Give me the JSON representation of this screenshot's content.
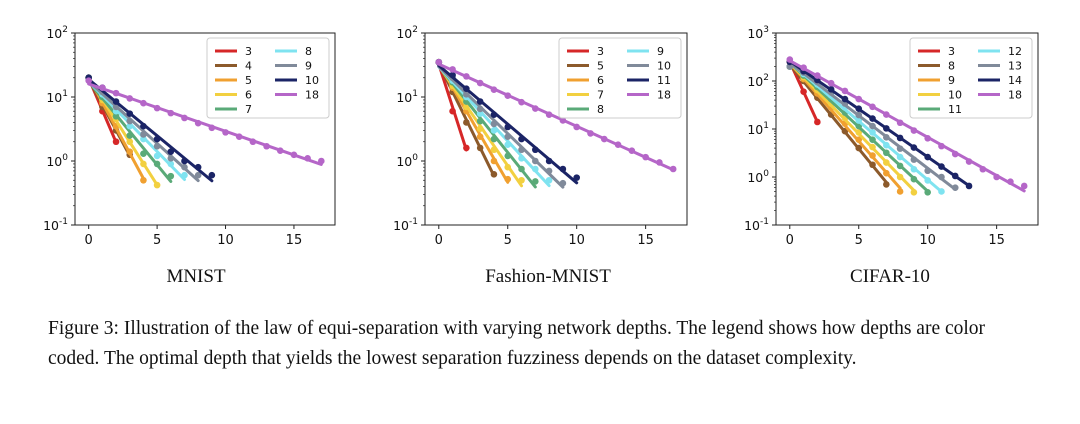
{
  "figure": {
    "caption": "Figure 3: Illustration of the law of equi-separation with varying network depths. The legend shows how depths are color coded. The optimal depth that yields the lowest separation fuzziness depends on the dataset complexity.",
    "colors": {
      "3": "#d62728",
      "4": "#8c5a2b",
      "5": "#f0a030",
      "6": "#f2d040",
      "7": "#5aaa78",
      "8": "#7fe3f0",
      "9": "#808a9a",
      "10": "#1b2466",
      "11": "#1b2466",
      "12": "#7fe3f0",
      "13": "#808a9a",
      "14": "#1b2466",
      "18": "#b566c8"
    }
  },
  "chart_data": [
    {
      "type": "line",
      "title": "MNIST",
      "xlabel": "",
      "ylabel": "",
      "yscale": "log",
      "xlim": [
        -1,
        18
      ],
      "ylim": [
        0.1,
        100
      ],
      "xticks": [
        "0",
        "5",
        "10",
        "15"
      ],
      "yticks": [
        "10^-1",
        "10^0",
        "10^1",
        "10^2"
      ],
      "legend_placement": "top-right",
      "legend_columns": [
        [
          "3",
          "4",
          "5",
          "6",
          "7"
        ],
        [
          "8",
          "9",
          "10",
          "18"
        ]
      ],
      "series": [
        {
          "name": "3",
          "color": "#d62728",
          "x": [
            0,
            1,
            2
          ],
          "y": [
            20,
            6.0,
            2.0
          ]
        },
        {
          "name": "4",
          "color": "#8c5a2b",
          "x": [
            0,
            1,
            2,
            3
          ],
          "y": [
            20,
            7.0,
            3.0,
            1.25
          ]
        },
        {
          "name": "5",
          "color": "#f0a030",
          "x": [
            0,
            1,
            2,
            3,
            4
          ],
          "y": [
            20,
            8.0,
            3.5,
            1.4,
            0.5
          ]
        },
        {
          "name": "6",
          "color": "#f2d040",
          "x": [
            0,
            1,
            2,
            3,
            4,
            5
          ],
          "y": [
            20,
            9.0,
            4.5,
            2.0,
            0.9,
            0.42
          ]
        },
        {
          "name": "7",
          "color": "#5aaa78",
          "x": [
            0,
            1,
            2,
            3,
            4,
            5,
            6
          ],
          "y": [
            20,
            10.0,
            5.0,
            2.5,
            1.3,
            0.9,
            0.58
          ]
        },
        {
          "name": "8",
          "color": "#7fe3f0",
          "x": [
            0,
            1,
            2,
            3,
            4,
            5,
            6,
            7
          ],
          "y": [
            20,
            11.0,
            6.0,
            3.5,
            2.2,
            1.2,
            0.9,
            0.6
          ]
        },
        {
          "name": "9",
          "color": "#808a9a",
          "x": [
            0,
            1,
            2,
            3,
            4,
            5,
            6,
            7,
            8
          ],
          "y": [
            20,
            12.0,
            7.0,
            4.2,
            2.6,
            1.7,
            1.1,
            0.8,
            0.6
          ]
        },
        {
          "name": "10",
          "color": "#1b2466",
          "x": [
            0,
            1,
            2,
            3,
            4,
            5,
            6,
            7,
            8,
            9
          ],
          "y": [
            20,
            14.0,
            8.5,
            5.5,
            3.5,
            2.2,
            1.4,
            1.0,
            0.8,
            0.6
          ]
        },
        {
          "name": "18",
          "color": "#b566c8",
          "x": [
            0,
            1,
            2,
            3,
            4,
            5,
            6,
            7,
            8,
            9,
            10,
            11,
            12,
            13,
            14,
            15,
            16,
            17
          ],
          "y": [
            18,
            14.0,
            11.5,
            9.5,
            8.0,
            6.7,
            5.6,
            4.7,
            3.9,
            3.3,
            2.8,
            2.4,
            2.0,
            1.7,
            1.45,
            1.25,
            1.1,
            1.0
          ]
        }
      ]
    },
    {
      "type": "line",
      "title": "Fashion-MNIST",
      "xlabel": "",
      "ylabel": "",
      "yscale": "log",
      "xlim": [
        -1,
        18
      ],
      "ylim": [
        0.1,
        100
      ],
      "xticks": [
        "0",
        "5",
        "10",
        "15"
      ],
      "yticks": [
        "10^-1",
        "10^0",
        "10^1",
        "10^2"
      ],
      "legend_placement": "top-right",
      "legend_columns": [
        [
          "3",
          "5",
          "6",
          "7",
          "8"
        ],
        [
          "9",
          "10",
          "11",
          "18"
        ]
      ],
      "series": [
        {
          "name": "3",
          "color": "#d62728",
          "x": [
            0,
            1,
            2
          ],
          "y": [
            35,
            6.0,
            1.6
          ]
        },
        {
          "name": "5",
          "color": "#8c5a2b",
          "x": [
            0,
            1,
            2,
            3,
            4
          ],
          "y": [
            35,
            12.0,
            4.0,
            1.6,
            0.62
          ]
        },
        {
          "name": "6",
          "color": "#f0a030",
          "x": [
            0,
            1,
            2,
            3,
            4,
            5
          ],
          "y": [
            35,
            14.0,
            6.0,
            2.4,
            1.0,
            0.52
          ]
        },
        {
          "name": "7",
          "color": "#f2d040",
          "x": [
            0,
            1,
            2,
            3,
            4,
            5,
            6
          ],
          "y": [
            35,
            15.0,
            7.0,
            3.2,
            1.5,
            0.8,
            0.5
          ]
        },
        {
          "name": "8",
          "color": "#5aaa78",
          "x": [
            0,
            1,
            2,
            3,
            4,
            5,
            6,
            7
          ],
          "y": [
            35,
            17.0,
            8.5,
            4.2,
            2.2,
            1.2,
            0.75,
            0.48
          ]
        },
        {
          "name": "9",
          "color": "#7fe3f0",
          "x": [
            0,
            1,
            2,
            3,
            4,
            5,
            6,
            7,
            8
          ],
          "y": [
            35,
            18.0,
            10.0,
            5.5,
            3.0,
            1.8,
            1.1,
            0.75,
            0.5
          ]
        },
        {
          "name": "10",
          "color": "#808a9a",
          "x": [
            0,
            1,
            2,
            3,
            4,
            5,
            6,
            7,
            8,
            9
          ],
          "y": [
            35,
            20.0,
            11.0,
            6.5,
            3.8,
            2.4,
            1.5,
            1.0,
            0.7,
            0.45
          ]
        },
        {
          "name": "11",
          "color": "#1b2466",
          "x": [
            0,
            1,
            2,
            3,
            4,
            5,
            6,
            7,
            8,
            9,
            10
          ],
          "y": [
            35,
            22.0,
            13.5,
            8.5,
            5.3,
            3.4,
            2.2,
            1.5,
            1.0,
            0.75,
            0.55
          ]
        },
        {
          "name": "18",
          "color": "#b566c8",
          "x": [
            0,
            1,
            2,
            3,
            4,
            5,
            6,
            7,
            8,
            9,
            10,
            11,
            12,
            13,
            14,
            15,
            16,
            17
          ],
          "y": [
            35,
            27,
            21,
            16.5,
            13,
            10.5,
            8.3,
            6.6,
            5.3,
            4.3,
            3.4,
            2.7,
            2.2,
            1.8,
            1.45,
            1.15,
            0.95,
            0.75
          ]
        }
      ]
    },
    {
      "type": "line",
      "title": "CIFAR-10",
      "xlabel": "",
      "ylabel": "",
      "yscale": "log",
      "xlim": [
        -1,
        18
      ],
      "ylim": [
        0.1,
        1000
      ],
      "xticks": [
        "0",
        "5",
        "10",
        "15"
      ],
      "yticks": [
        "10^-1",
        "10^0",
        "10^1",
        "10^2",
        "10^3"
      ],
      "legend_placement": "top-right",
      "legend_columns": [
        [
          "3",
          "8",
          "9",
          "10",
          "11"
        ],
        [
          "12",
          "13",
          "14",
          "18"
        ]
      ],
      "series": [
        {
          "name": "3",
          "color": "#d62728",
          "x": [
            0,
            1,
            2
          ],
          "y": [
            250,
            60,
            14
          ]
        },
        {
          "name": "8",
          "color": "#8c5a2b",
          "x": [
            0,
            1,
            2,
            3,
            4,
            5,
            6,
            7
          ],
          "y": [
            200,
            100,
            45,
            20,
            9,
            4,
            1.8,
            0.7
          ]
        },
        {
          "name": "9",
          "color": "#f0a030",
          "x": [
            0,
            1,
            2,
            3,
            4,
            5,
            6,
            7,
            8
          ],
          "y": [
            200,
            110,
            55,
            28,
            13,
            6,
            2.8,
            1.2,
            0.5
          ]
        },
        {
          "name": "10",
          "color": "#f2d040",
          "x": [
            0,
            1,
            2,
            3,
            4,
            5,
            6,
            7,
            8,
            9
          ],
          "y": [
            200,
            120,
            65,
            34,
            17,
            8.5,
            4.2,
            2.0,
            1.0,
            0.48
          ]
        },
        {
          "name": "11",
          "color": "#5aaa78",
          "x": [
            0,
            1,
            2,
            3,
            4,
            5,
            6,
            7,
            8,
            9,
            10
          ],
          "y": [
            200,
            130,
            75,
            42,
            22,
            11.5,
            6.0,
            3.2,
            1.7,
            0.9,
            0.48
          ]
        },
        {
          "name": "12",
          "color": "#7fe3f0",
          "x": [
            0,
            1,
            2,
            3,
            4,
            5,
            6,
            7,
            8,
            9,
            10,
            11
          ],
          "y": [
            200,
            140,
            85,
            50,
            28,
            15,
            8.5,
            4.6,
            2.6,
            1.45,
            0.85,
            0.5
          ]
        },
        {
          "name": "13",
          "color": "#808a9a",
          "x": [
            0,
            1,
            2,
            3,
            4,
            5,
            6,
            7,
            8,
            9,
            10,
            11,
            12
          ],
          "y": [
            200,
            150,
            95,
            58,
            34,
            19.5,
            11.5,
            6.7,
            3.9,
            2.3,
            1.35,
            1.0,
            0.6
          ]
        },
        {
          "name": "14",
          "color": "#1b2466",
          "x": [
            0,
            1,
            2,
            3,
            4,
            5,
            6,
            7,
            8,
            9,
            10,
            11,
            12,
            13
          ],
          "y": [
            250,
            160,
            105,
            67,
            42,
            26.5,
            16.5,
            10.3,
            6.5,
            4.1,
            2.6,
            1.65,
            1.05,
            0.65
          ]
        },
        {
          "name": "18",
          "color": "#b566c8",
          "x": [
            0,
            1,
            2,
            3,
            4,
            5,
            6,
            7,
            8,
            9,
            10,
            11,
            12,
            13,
            14,
            15,
            16,
            17
          ],
          "y": [
            280,
            190,
            130,
            90,
            62,
            42,
            29,
            20,
            13.5,
            9.3,
            6.4,
            4.4,
            3.0,
            2.1,
            1.45,
            1.0,
            0.8,
            0.65
          ]
        }
      ]
    }
  ]
}
